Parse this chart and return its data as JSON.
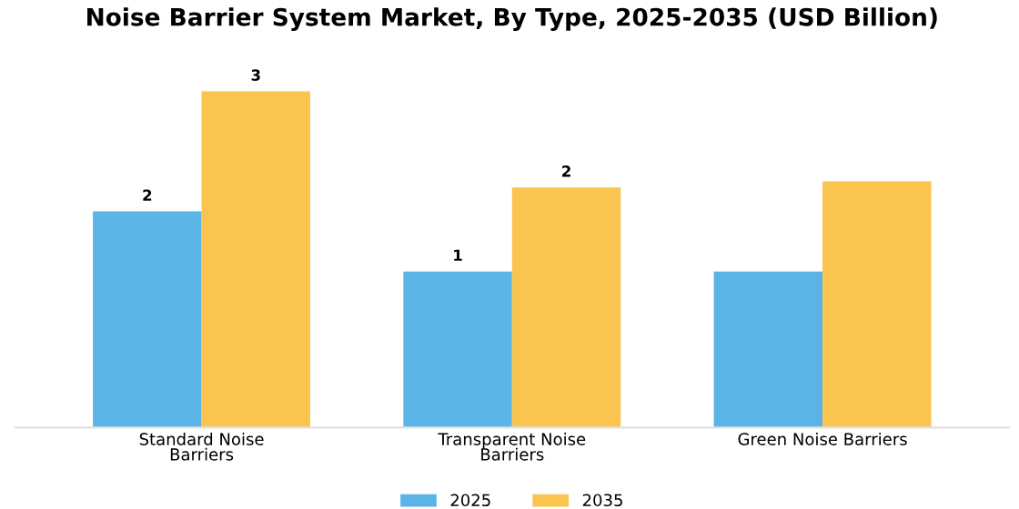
{
  "chart_data": {
    "type": "bar",
    "title": "Noise Barrier System Market, By Type, 2025-2035 (USD Billion)",
    "categories": [
      "Standard Noise Barriers",
      "Transparent Noise Barriers",
      "Green Noise Barriers"
    ],
    "tick_labels": "x",
    "series": [
      {
        "name": "2025",
        "color": "#5ab4e6",
        "values": [
          1.8,
          1.3,
          1.3
        ],
        "value_labels": [
          "2",
          "1",
          null
        ]
      },
      {
        "name": "2035",
        "color": "#fac54e",
        "values": [
          2.8,
          2.0,
          2.05
        ],
        "value_labels": [
          "3",
          "2",
          null
        ]
      }
    ],
    "legend": "bottom",
    "grid": false
  }
}
